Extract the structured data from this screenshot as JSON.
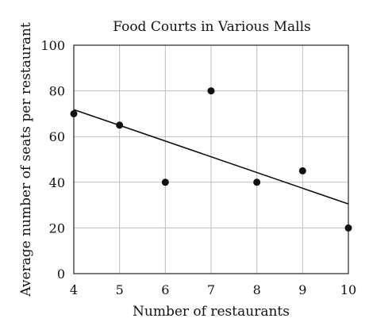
{
  "chart_data": {
    "type": "scatter",
    "title": "Food Courts in Various Malls",
    "xlabel": "Number of restaurants",
    "ylabel": "Average number of seats per restaurant",
    "xlim": [
      4,
      10
    ],
    "ylim": [
      0,
      100
    ],
    "x_ticks": [
      "4",
      "5",
      "6",
      "7",
      "8",
      "9",
      "10"
    ],
    "y_ticks": [
      "0",
      "20",
      "40",
      "60",
      "80",
      "100"
    ],
    "grid": true,
    "points": [
      {
        "x": 4,
        "y": 70
      },
      {
        "x": 5,
        "y": 65
      },
      {
        "x": 6,
        "y": 40
      },
      {
        "x": 7,
        "y": 80
      },
      {
        "x": 8,
        "y": 40
      },
      {
        "x": 9,
        "y": 45
      },
      {
        "x": 10,
        "y": 20
      }
    ],
    "trend_line": {
      "x": [
        4,
        10
      ],
      "y": [
        71.8,
        30.5
      ]
    }
  }
}
